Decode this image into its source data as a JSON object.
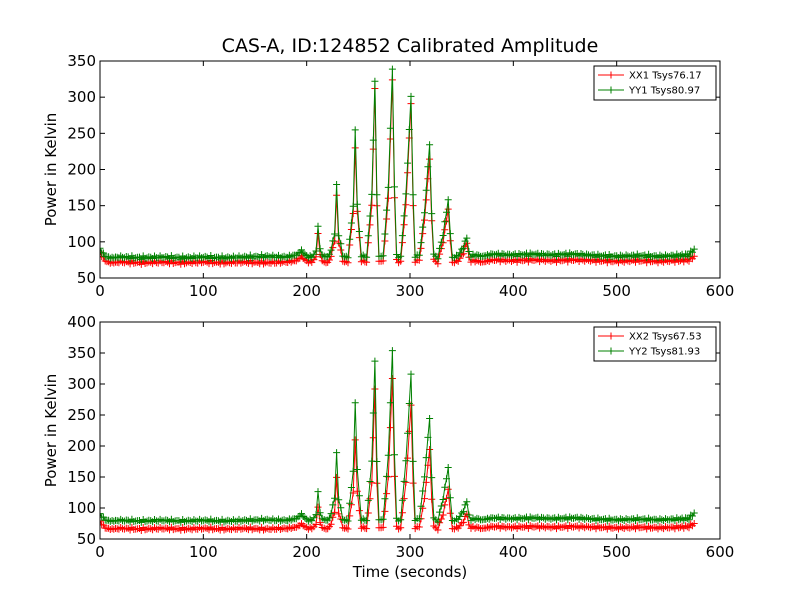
{
  "title": "CAS-A, ID:124852 Calibrated Amplitude",
  "chart_data": [
    {
      "type": "line",
      "ylabel": "Power in Kelvin",
      "xlabel": "",
      "xlim": [
        0,
        600
      ],
      "ylim": [
        50,
        350
      ],
      "xticks": [
        "0",
        "100",
        "200",
        "300",
        "400",
        "500",
        "600"
      ],
      "yticks": [
        "50",
        "100",
        "150",
        "200",
        "250",
        "300",
        "350"
      ],
      "legend_position": "top-right",
      "marker": "+",
      "series": [
        {
          "name": "XX1 Tsys76.17",
          "color": "#ff0000",
          "x": [
            0,
            5,
            10,
            20,
            40,
            60,
            80,
            100,
            120,
            140,
            160,
            180,
            190,
            195,
            200,
            205,
            209,
            211,
            213,
            217,
            222,
            227,
            229,
            231,
            235,
            240,
            245,
            247,
            249,
            253,
            258,
            263,
            266,
            268,
            270,
            274,
            279,
            283,
            285,
            287,
            291,
            296,
            301,
            303,
            305,
            309,
            314,
            319,
            321,
            323,
            327,
            332,
            337,
            339,
            341,
            345,
            350,
            355,
            357,
            359,
            363,
            370,
            380,
            400,
            420,
            440,
            460,
            480,
            500,
            520,
            540,
            560,
            570,
            575
          ],
          "y": [
            85,
            74,
            71,
            72,
            71,
            72,
            71,
            72,
            71,
            72,
            71,
            72,
            74,
            80,
            73,
            72,
            80,
            110,
            82,
            71,
            73,
            100,
            165,
            100,
            73,
            72,
            140,
            230,
            140,
            74,
            72,
            150,
            310,
            150,
            74,
            73,
            160,
            325,
            160,
            74,
            73,
            150,
            290,
            150,
            74,
            73,
            130,
            215,
            130,
            74,
            72,
            100,
            145,
            100,
            73,
            72,
            80,
            98,
            80,
            72,
            74,
            72,
            75,
            74,
            75,
            74,
            75,
            74,
            73,
            74,
            73,
            74,
            75,
            80
          ]
        },
        {
          "name": "YY1 Tsys80.97",
          "color": "#008000",
          "x": [
            0,
            5,
            10,
            20,
            40,
            60,
            80,
            100,
            120,
            140,
            160,
            180,
            190,
            195,
            200,
            205,
            209,
            211,
            213,
            217,
            222,
            227,
            229,
            231,
            235,
            240,
            245,
            247,
            249,
            253,
            258,
            263,
            266,
            268,
            270,
            274,
            279,
            283,
            285,
            287,
            291,
            296,
            301,
            303,
            305,
            309,
            314,
            319,
            321,
            323,
            327,
            332,
            337,
            339,
            341,
            345,
            350,
            355,
            357,
            359,
            363,
            370,
            380,
            400,
            420,
            440,
            460,
            480,
            500,
            520,
            540,
            560,
            570,
            575
          ],
          "y": [
            90,
            80,
            78,
            79,
            78,
            79,
            78,
            79,
            78,
            79,
            80,
            79,
            82,
            88,
            80,
            79,
            88,
            120,
            90,
            79,
            81,
            110,
            180,
            110,
            80,
            79,
            150,
            255,
            150,
            81,
            79,
            165,
            320,
            165,
            81,
            80,
            175,
            340,
            175,
            81,
            80,
            165,
            300,
            165,
            81,
            80,
            140,
            235,
            140,
            81,
            79,
            110,
            158,
            110,
            80,
            79,
            88,
            105,
            88,
            79,
            82,
            80,
            83,
            82,
            83,
            82,
            83,
            81,
            80,
            81,
            80,
            81,
            82,
            90
          ]
        }
      ]
    },
    {
      "type": "line",
      "ylabel": "Power in Kelvin",
      "xlabel": "Time (seconds)",
      "xlim": [
        0,
        600
      ],
      "ylim": [
        50,
        400
      ],
      "xticks": [
        "0",
        "100",
        "200",
        "300",
        "400",
        "500",
        "600"
      ],
      "yticks": [
        "50",
        "100",
        "150",
        "200",
        "250",
        "300",
        "350",
        "400"
      ],
      "legend_position": "top-right",
      "marker": "+",
      "series": [
        {
          "name": "XX2 Tsys67.53",
          "color": "#ff0000",
          "x": [
            0,
            5,
            10,
            20,
            40,
            60,
            80,
            100,
            120,
            140,
            160,
            180,
            190,
            195,
            200,
            205,
            209,
            211,
            213,
            217,
            222,
            227,
            229,
            231,
            235,
            240,
            245,
            247,
            249,
            253,
            258,
            263,
            266,
            268,
            270,
            274,
            279,
            283,
            285,
            287,
            291,
            296,
            301,
            303,
            305,
            309,
            314,
            319,
            321,
            323,
            327,
            332,
            337,
            339,
            341,
            345,
            350,
            355,
            357,
            359,
            363,
            370,
            380,
            400,
            420,
            440,
            460,
            480,
            500,
            520,
            540,
            560,
            570,
            575
          ],
          "y": [
            78,
            68,
            66,
            67,
            66,
            67,
            66,
            67,
            66,
            67,
            66,
            67,
            69,
            74,
            68,
            67,
            74,
            100,
            76,
            66,
            68,
            92,
            150,
            92,
            68,
            67,
            125,
            210,
            125,
            69,
            67,
            140,
            290,
            140,
            69,
            68,
            150,
            310,
            150,
            69,
            68,
            140,
            265,
            140,
            69,
            68,
            115,
            195,
            115,
            69,
            67,
            90,
            130,
            90,
            68,
            67,
            74,
            90,
            74,
            67,
            69,
            67,
            70,
            69,
            70,
            69,
            70,
            69,
            68,
            69,
            68,
            69,
            70,
            75
          ]
        },
        {
          "name": "YY2 Tsys81.93",
          "color": "#008000",
          "x": [
            0,
            5,
            10,
            20,
            40,
            60,
            80,
            100,
            120,
            140,
            160,
            180,
            190,
            195,
            200,
            205,
            209,
            211,
            213,
            217,
            222,
            227,
            229,
            231,
            235,
            240,
            245,
            247,
            249,
            253,
            258,
            263,
            266,
            268,
            270,
            274,
            279,
            283,
            285,
            287,
            291,
            296,
            301,
            303,
            305,
            309,
            314,
            319,
            321,
            323,
            327,
            332,
            337,
            339,
            341,
            345,
            350,
            355,
            357,
            359,
            363,
            370,
            380,
            400,
            420,
            440,
            460,
            480,
            500,
            520,
            540,
            560,
            570,
            575
          ],
          "y": [
            90,
            81,
            79,
            80,
            79,
            80,
            79,
            80,
            79,
            80,
            81,
            80,
            83,
            90,
            81,
            80,
            90,
            125,
            92,
            80,
            82,
            115,
            190,
            115,
            81,
            80,
            160,
            270,
            160,
            82,
            80,
            175,
            335,
            175,
            82,
            81,
            185,
            355,
            185,
            82,
            81,
            175,
            315,
            175,
            82,
            81,
            150,
            245,
            150,
            82,
            80,
            115,
            165,
            115,
            81,
            80,
            90,
            110,
            90,
            80,
            83,
            81,
            84,
            83,
            84,
            83,
            84,
            82,
            81,
            82,
            81,
            82,
            83,
            92
          ]
        }
      ]
    }
  ]
}
